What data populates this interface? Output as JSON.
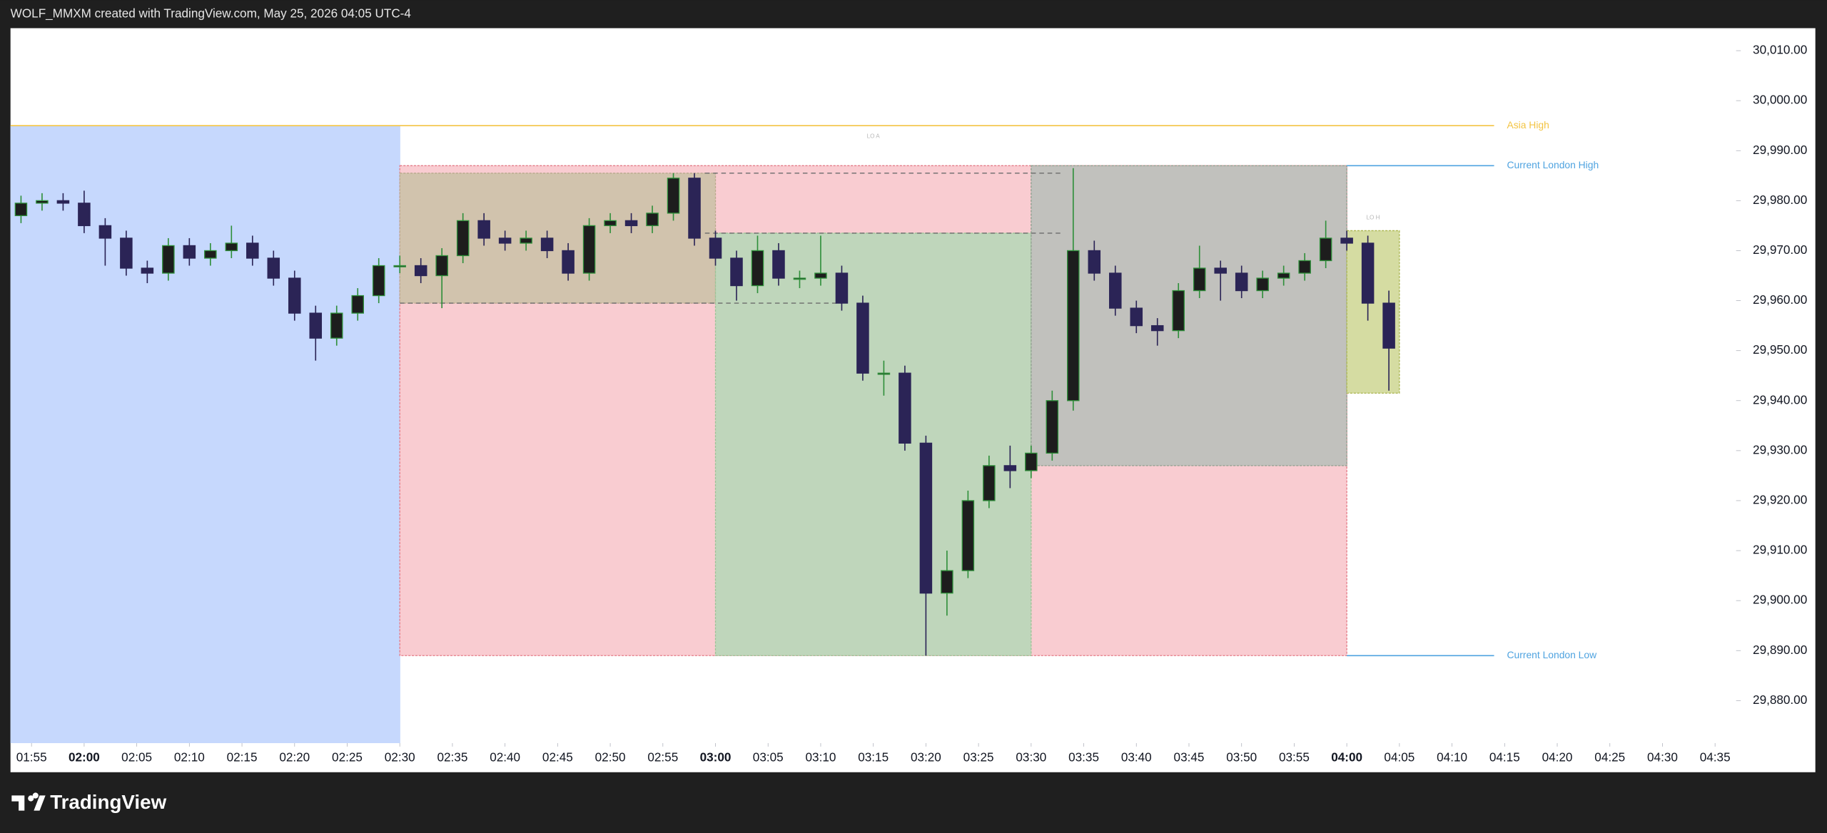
{
  "header": "WOLF_MMXM created with TradingView.com, May 25, 2026 04:05 UTC-4",
  "footer_logo": "TradingView",
  "chart_data": {
    "type": "candlestick",
    "x": [
      "01:54",
      "01:56",
      "01:58",
      "02:00",
      "02:02",
      "02:04",
      "02:06",
      "02:08",
      "02:10",
      "02:12",
      "02:14",
      "02:16",
      "02:18",
      "02:20",
      "02:22",
      "02:24",
      "02:26",
      "02:28",
      "02:30",
      "02:32",
      "02:34",
      "02:36",
      "02:38",
      "02:40",
      "02:42",
      "02:44",
      "02:46",
      "02:48",
      "02:50",
      "02:52",
      "02:54",
      "02:56",
      "02:58",
      "03:00",
      "03:02",
      "03:04",
      "03:06",
      "03:08",
      "03:10",
      "03:12",
      "03:14",
      "03:16",
      "03:18",
      "03:20",
      "03:22",
      "03:24",
      "03:26",
      "03:28",
      "03:30",
      "03:32",
      "03:34",
      "03:36",
      "03:38",
      "03:40",
      "03:42",
      "03:44",
      "03:46",
      "03:48",
      "03:50",
      "03:52",
      "03:54",
      "03:56",
      "03:58",
      "04:00",
      "04:02",
      "04:04"
    ],
    "open": [
      29977,
      29979.5,
      29980,
      29979.5,
      29975,
      29972.5,
      29966.5,
      29965.5,
      29971,
      29968.5,
      29970,
      29971.5,
      29968.5,
      29964.5,
      29957.5,
      29952.5,
      29957.5,
      29961,
      29967,
      29967,
      29965,
      29969,
      29976,
      29972.5,
      29971.5,
      29972.5,
      29970,
      29965.5,
      29975,
      29976,
      29975,
      29977.5,
      29984.5,
      29972.5,
      29968.5,
      29963,
      29970,
      29964.5,
      29964.5,
      29965.5,
      29959.5,
      29945.5,
      29945.5,
      29931.5,
      29901.5,
      29906,
      29920,
      29927,
      29926,
      29929.5,
      29940,
      29970,
      29965.5,
      29958.5,
      29955,
      29954,
      29962,
      29966.5,
      29965.5,
      29962,
      29964.5,
      29965.5,
      29968,
      29972.5,
      29971.5,
      29959.5
    ],
    "high": [
      29981,
      29981.5,
      29981.5,
      29982,
      29976.5,
      29974,
      29968,
      29972.5,
      29972.5,
      29971.5,
      29975,
      29973,
      29970,
      29966,
      29959,
      29959,
      29962.5,
      29968.5,
      29969,
      29968.5,
      29970.5,
      29977.5,
      29977.5,
      29974,
      29974,
      29974,
      29971.5,
      29976.5,
      29977.5,
      29977.5,
      29979,
      29985.5,
      29985.5,
      29974,
      29970,
      29973,
      29971.5,
      29966,
      29973,
      29967,
      29961,
      29948,
      29947,
      29933,
      29910,
      29922,
      29929,
      29931,
      29931,
      29942,
      29986.5,
      29972,
      29967,
      29960,
      29956.5,
      29963.5,
      29971,
      29968,
      29967,
      29966,
      29967,
      29969.5,
      29976,
      29974,
      29973,
      29962
    ],
    "low": [
      29975.5,
      29978,
      29978,
      29973.5,
      29967,
      29965,
      29963.5,
      29964,
      29967,
      29967,
      29968.5,
      29967,
      29963,
      29956,
      29948,
      29951,
      29956,
      29959.5,
      29965.5,
      29963.5,
      29958.5,
      29967.5,
      29971,
      29970,
      29970,
      29968.5,
      29964,
      29964,
      29973.5,
      29973.5,
      29973.5,
      29976,
      29971,
      29967,
      29960,
      29961.5,
      29963,
      29962.5,
      29963,
      29958,
      29944,
      29941,
      29930,
      29889,
      29897,
      29904.5,
      29918.5,
      29922.5,
      29924.5,
      29928,
      29938,
      29964,
      29957,
      29953.5,
      29951,
      29952.5,
      29960.5,
      29960,
      29960.5,
      29960.5,
      29963,
      29964,
      29966.5,
      29970,
      29956,
      29942
    ],
    "close": [
      29979.5,
      29980,
      29979.5,
      29975,
      29972.5,
      29966.5,
      29965.5,
      29971,
      29968.5,
      29970,
      29971.5,
      29968.5,
      29964.5,
      29957.5,
      29952.5,
      29957.5,
      29961,
      29967,
      29967,
      29965,
      29969,
      29976,
      29972.5,
      29971.5,
      29972.5,
      29970,
      29965.5,
      29975,
      29976,
      29975,
      29977.5,
      29984.5,
      29972.5,
      29968.5,
      29963,
      29970,
      29964.5,
      29964.5,
      29965.5,
      29959.5,
      29945.5,
      29945.5,
      29931.5,
      29901.5,
      29906,
      29920,
      29927,
      29926,
      29929.5,
      29940,
      29970,
      29965.5,
      29958.5,
      29955,
      29954,
      29962,
      29966.5,
      29965.5,
      29962,
      29964.5,
      29965.5,
      29968,
      29972.5,
      29971.5,
      29959.5,
      29950.5
    ],
    "up_color": "#2f8f3a",
    "down_color": "#2b2456",
    "xlim": [
      "01:53",
      "04:37"
    ],
    "xticks": [
      "01:55",
      "02:00",
      "02:05",
      "02:10",
      "02:15",
      "02:20",
      "02:25",
      "02:30",
      "02:35",
      "02:40",
      "02:45",
      "02:50",
      "02:55",
      "03:00",
      "03:05",
      "03:10",
      "03:15",
      "03:20",
      "03:25",
      "03:30",
      "03:35",
      "03:40",
      "03:45",
      "03:50",
      "03:55",
      "04:00",
      "04:05",
      "04:10",
      "04:15",
      "04:20",
      "04:25",
      "04:30",
      "04:35"
    ],
    "ylim": [
      29871.5,
      30014.5
    ],
    "yticks": [
      {
        "value": 29880,
        "label": "29,880.00"
      },
      {
        "value": 29890,
        "label": "29,890.00"
      },
      {
        "value": 29900,
        "label": "29,900.00"
      },
      {
        "value": 29910,
        "label": "29,910.00"
      },
      {
        "value": 29920,
        "label": "29,920.00"
      },
      {
        "value": 29930,
        "label": "29,930.00"
      },
      {
        "value": 29940,
        "label": "29,940.00"
      },
      {
        "value": 29950,
        "label": "29,950.00"
      },
      {
        "value": 29960,
        "label": "29,960.00"
      },
      {
        "value": 29970,
        "label": "29,970.00"
      },
      {
        "value": 29980,
        "label": "29,980.00"
      },
      {
        "value": 29990,
        "label": "29,990.00"
      },
      {
        "value": 30000,
        "label": "30,000.00"
      },
      {
        "value": 30010,
        "label": "30,010.00"
      }
    ],
    "zones": [
      {
        "x0": "01:53",
        "x1": "02:30",
        "y0": 29871.5,
        "y1": 29995,
        "fill": "#c6d8fd",
        "stroke": "#c6d8fd"
      },
      {
        "x0": "02:30",
        "x1": "04:00",
        "y0": 29889,
        "y1": 29987,
        "fill": "#f9ccd1",
        "stroke": "#e57c88",
        "label": "LO A"
      },
      {
        "x0": "02:30",
        "x1": "03:00",
        "y0": 29959.5,
        "y1": 29985.5,
        "fill": "#d1c3ad",
        "stroke": "#b9a98d"
      },
      {
        "x0": "03:00",
        "x1": "03:30",
        "y0": 29889,
        "y1": 29973.5,
        "fill": "#bfd6bb",
        "stroke": "#9cc497"
      },
      {
        "x0": "03:30",
        "x1": "04:00",
        "y0": 29927,
        "y1": 29987,
        "fill": "#c1c1bd",
        "stroke": "#8fa08f"
      },
      {
        "x0": "04:00",
        "x1": "04:05",
        "y0": 29941.5,
        "y1": 29974,
        "fill": "#d5dca2",
        "stroke": "#aab54f",
        "label": "LO H"
      }
    ],
    "levels": [
      {
        "name": "Asia High",
        "value": 29995,
        "x0": "01:53",
        "x1": "04:14",
        "color": "#f3c443"
      },
      {
        "name": "Current London High",
        "value": 29987,
        "x0": "04:00",
        "x1": "04:14",
        "color": "#4fa3e0"
      },
      {
        "name": "Current London Low",
        "value": 29889,
        "x0": "04:00",
        "x1": "04:14",
        "color": "#4fa3e0"
      }
    ],
    "dashed": [
      {
        "x0": "02:59",
        "x1": "03:33",
        "value": 29985.5
      },
      {
        "x0": "02:59",
        "x1": "03:33",
        "value": 29973.5
      },
      {
        "x0": "02:30",
        "x1": "03:12",
        "value": 29959.5
      }
    ]
  }
}
